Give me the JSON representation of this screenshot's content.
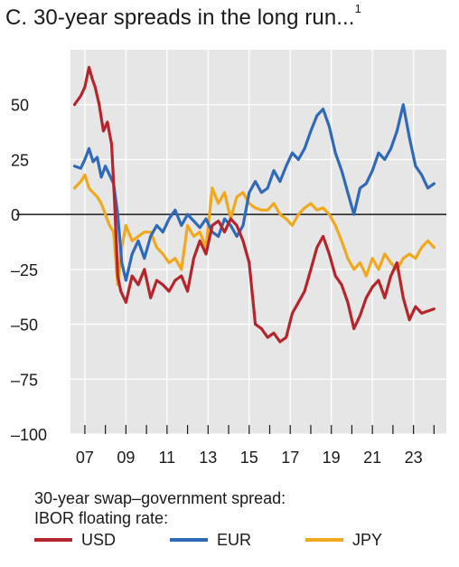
{
  "chart_data": {
    "type": "line",
    "title": "C. 30-year spreads in the long run...",
    "title_footnote": "1",
    "legend_title_1": "30-year swap–government spread:",
    "legend_title_2": "IBOR floating rate:",
    "ylim": [
      -100,
      75
    ],
    "yticks": [
      50,
      25,
      0,
      -25,
      -50,
      -75,
      -100
    ],
    "ytick_labels": [
      "50",
      "25",
      "0",
      "–25",
      "–50",
      "–75",
      "–100"
    ],
    "xlim": [
      2006.3,
      2024.6
    ],
    "xticks": [
      2007,
      2009,
      2011,
      2013,
      2015,
      2017,
      2019,
      2021,
      2023
    ],
    "xtick_labels": [
      "07",
      "09",
      "11",
      "13",
      "15",
      "17",
      "19",
      "21",
      "23"
    ],
    "grid": true,
    "zero_line": true,
    "series": [
      {
        "name": "USD",
        "color": "#b5252b",
        "x": [
          2006.5,
          2006.8,
          2007.0,
          2007.2,
          2007.35,
          2007.5,
          2007.7,
          2007.9,
          2008.1,
          2008.3,
          2008.45,
          2008.6,
          2008.75,
          2009.0,
          2009.3,
          2009.6,
          2009.9,
          2010.2,
          2010.5,
          2010.8,
          2011.1,
          2011.4,
          2011.7,
          2012.0,
          2012.3,
          2012.6,
          2012.9,
          2013.2,
          2013.5,
          2013.8,
          2014.1,
          2014.4,
          2014.7,
          2015.0,
          2015.3,
          2015.6,
          2015.9,
          2016.2,
          2016.5,
          2016.8,
          2017.1,
          2017.4,
          2017.7,
          2018.0,
          2018.3,
          2018.6,
          2018.9,
          2019.2,
          2019.5,
          2019.8,
          2020.1,
          2020.4,
          2020.7,
          2021.0,
          2021.3,
          2021.6,
          2021.9,
          2022.2,
          2022.5,
          2022.8,
          2023.1,
          2023.4,
          2023.7,
          2024.0
        ],
        "values": [
          50,
          54,
          58,
          67,
          62,
          58,
          50,
          38,
          42,
          32,
          5,
          -28,
          -35,
          -40,
          -28,
          -32,
          -25,
          -38,
          -30,
          -32,
          -35,
          -30,
          -28,
          -35,
          -20,
          -12,
          -18,
          -5,
          -3,
          -8,
          -2,
          -5,
          -12,
          -22,
          -50,
          -52,
          -56,
          -54,
          -58,
          -56,
          -45,
          -40,
          -35,
          -25,
          -15,
          -10,
          -18,
          -28,
          -32,
          -40,
          -52,
          -46,
          -38,
          -33,
          -30,
          -38,
          -28,
          -22,
          -38,
          -48,
          -42,
          -45,
          -44,
          -43
        ]
      },
      {
        "name": "EUR",
        "color": "#2f6ab8",
        "x": [
          2006.5,
          2006.8,
          2007.0,
          2007.2,
          2007.4,
          2007.6,
          2007.8,
          2008.0,
          2008.2,
          2008.4,
          2008.6,
          2008.8,
          2009.0,
          2009.3,
          2009.6,
          2009.9,
          2010.2,
          2010.5,
          2010.8,
          2011.1,
          2011.4,
          2011.7,
          2012.0,
          2012.3,
          2012.6,
          2012.9,
          2013.2,
          2013.5,
          2013.8,
          2014.1,
          2014.4,
          2014.7,
          2015.0,
          2015.3,
          2015.6,
          2015.9,
          2016.2,
          2016.5,
          2016.8,
          2017.1,
          2017.4,
          2017.7,
          2018.0,
          2018.3,
          2018.6,
          2018.9,
          2019.2,
          2019.5,
          2019.8,
          2020.1,
          2020.4,
          2020.7,
          2021.0,
          2021.3,
          2021.6,
          2021.9,
          2022.2,
          2022.5,
          2022.8,
          2023.1,
          2023.4,
          2023.7,
          2024.0
        ],
        "values": [
          22,
          21,
          25,
          30,
          24,
          26,
          17,
          22,
          18,
          14,
          0,
          -22,
          -30,
          -18,
          -12,
          -20,
          -10,
          -5,
          -8,
          -2,
          2,
          -5,
          0,
          -3,
          -6,
          -2,
          -8,
          -10,
          -2,
          -5,
          -10,
          -5,
          10,
          15,
          10,
          12,
          20,
          15,
          22,
          28,
          25,
          30,
          38,
          45,
          48,
          40,
          28,
          20,
          10,
          0,
          12,
          14,
          20,
          28,
          25,
          30,
          38,
          50,
          35,
          22,
          18,
          12,
          14
        ]
      },
      {
        "name": "JPY",
        "color": "#f0a81c",
        "x": [
          2006.5,
          2006.8,
          2007.0,
          2007.2,
          2007.4,
          2007.6,
          2007.8,
          2008.0,
          2008.2,
          2008.4,
          2008.6,
          2008.8,
          2009.0,
          2009.3,
          2009.6,
          2009.9,
          2010.2,
          2010.5,
          2010.8,
          2011.1,
          2011.4,
          2011.7,
          2012.0,
          2012.3,
          2012.6,
          2012.9,
          2013.2,
          2013.5,
          2013.8,
          2014.1,
          2014.4,
          2014.7,
          2015.0,
          2015.3,
          2015.6,
          2015.9,
          2016.2,
          2016.5,
          2016.8,
          2017.1,
          2017.4,
          2017.7,
          2018.0,
          2018.3,
          2018.6,
          2018.9,
          2019.2,
          2019.5,
          2019.8,
          2020.1,
          2020.4,
          2020.7,
          2021.0,
          2021.3,
          2021.6,
          2021.9,
          2022.2,
          2022.5,
          2022.8,
          2023.1,
          2023.4,
          2023.7,
          2024.0
        ],
        "values": [
          12,
          15,
          18,
          12,
          10,
          8,
          5,
          0,
          -5,
          -8,
          -32,
          -15,
          -5,
          -12,
          -10,
          -8,
          -8,
          -15,
          -18,
          -22,
          -20,
          -25,
          -5,
          -10,
          -8,
          -15,
          12,
          5,
          10,
          -2,
          8,
          10,
          5,
          3,
          2,
          2,
          5,
          0,
          -2,
          -5,
          0,
          3,
          5,
          2,
          3,
          0,
          -5,
          -12,
          -20,
          -25,
          -22,
          -28,
          -20,
          -25,
          -18,
          -22,
          -25,
          -20,
          -18,
          -20,
          -15,
          -12,
          -15
        ]
      }
    ]
  }
}
